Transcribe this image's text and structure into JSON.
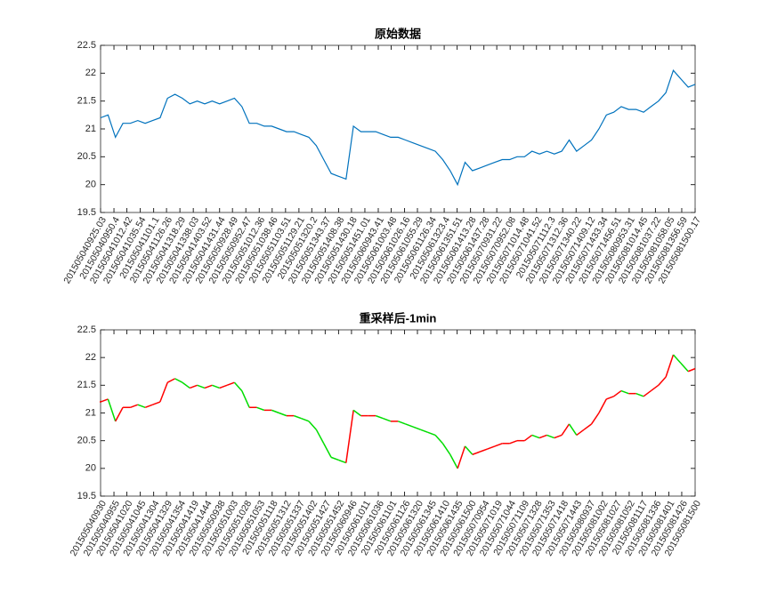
{
  "chart_data": [
    {
      "type": "line",
      "title": "原始数据",
      "color": "#0072bd",
      "x": [
        0,
        15,
        30,
        45,
        60,
        75,
        90,
        105,
        120,
        135,
        150,
        165,
        180,
        195,
        210,
        225,
        240,
        255,
        270,
        285,
        300,
        315,
        330,
        345,
        360,
        375,
        390,
        405,
        420,
        435,
        450,
        465,
        480,
        495,
        510,
        525,
        540,
        555,
        570,
        585,
        600,
        615,
        630,
        645,
        660,
        675,
        690,
        705,
        720,
        735,
        750,
        765,
        780,
        795,
        810,
        825,
        840,
        855,
        870,
        885,
        900,
        915,
        930,
        945,
        960,
        975,
        990,
        1005,
        1020,
        1035,
        1050,
        1065,
        1080,
        1095,
        1110,
        1125,
        1140,
        1155,
        1170,
        1185,
        1199
      ],
      "values": [
        21.2,
        21.25,
        20.85,
        21.1,
        21.1,
        21.15,
        21.1,
        21.15,
        21.2,
        21.55,
        21.62,
        21.55,
        21.45,
        21.5,
        21.45,
        21.5,
        21.45,
        21.5,
        21.55,
        21.4,
        21.1,
        21.1,
        21.05,
        21.05,
        21.0,
        20.95,
        20.95,
        20.9,
        20.85,
        20.7,
        20.45,
        20.2,
        20.15,
        20.1,
        21.05,
        20.95,
        20.95,
        20.95,
        20.9,
        20.85,
        20.85,
        20.8,
        20.75,
        20.7,
        20.65,
        20.6,
        20.45,
        20.25,
        20.0,
        20.4,
        20.25,
        20.3,
        20.35,
        20.4,
        20.45,
        20.45,
        20.5,
        20.5,
        20.6,
        20.55,
        20.6,
        20.55,
        20.6,
        20.8,
        20.6,
        20.7,
        20.8,
        21.0,
        21.25,
        21.3,
        21.4,
        21.35,
        21.35,
        21.3,
        21.4,
        21.5,
        21.65,
        22.05,
        21.9,
        21.75,
        21.8
      ],
      "xlim": [
        0,
        1199
      ],
      "xticks": [
        {
          "value": 0,
          "label": "201505040925.03"
        },
        {
          "value": 27,
          "label": "201505040950.4"
        },
        {
          "value": 53,
          "label": "201505041012.42"
        },
        {
          "value": 80,
          "label": "201505041035.54"
        },
        {
          "value": 107,
          "label": "201505041101.1"
        },
        {
          "value": 133,
          "label": "201505041126.26"
        },
        {
          "value": 160,
          "label": "201505041318.29"
        },
        {
          "value": 187,
          "label": "201505041338.03"
        },
        {
          "value": 213,
          "label": "201505041403.52"
        },
        {
          "value": 240,
          "label": "201505041431.44"
        },
        {
          "value": 266,
          "label": "201505050928.49"
        },
        {
          "value": 293,
          "label": "201505050952.47"
        },
        {
          "value": 320,
          "label": "201505051012.36"
        },
        {
          "value": 346,
          "label": "201505051038.46"
        },
        {
          "value": 373,
          "label": "201505051103.51"
        },
        {
          "value": 400,
          "label": "201505051129.21"
        },
        {
          "value": 426,
          "label": "201505051320.2"
        },
        {
          "value": 453,
          "label": "201505051343.37"
        },
        {
          "value": 480,
          "label": "201505051408.38"
        },
        {
          "value": 506,
          "label": "201505051430.18"
        },
        {
          "value": 533,
          "label": "201505051451.01"
        },
        {
          "value": 560,
          "label": "201505060943.41"
        },
        {
          "value": 586,
          "label": "201505061003.48"
        },
        {
          "value": 613,
          "label": "201505061026.16"
        },
        {
          "value": 639,
          "label": "201505061055.29"
        },
        {
          "value": 666,
          "label": "201505061126.34"
        },
        {
          "value": 693,
          "label": "201505061323.4"
        },
        {
          "value": 719,
          "label": "201505061351.51"
        },
        {
          "value": 746,
          "label": "201505061413.28"
        },
        {
          "value": 773,
          "label": "201505061437.28"
        },
        {
          "value": 799,
          "label": "201505070931.22"
        },
        {
          "value": 826,
          "label": "201505070952.08"
        },
        {
          "value": 853,
          "label": "201505071014.48"
        },
        {
          "value": 879,
          "label": "201505071041.52"
        },
        {
          "value": 906,
          "label": "201505071112.3"
        },
        {
          "value": 932,
          "label": "201505071312.36"
        },
        {
          "value": 959,
          "label": "201505071340.22"
        },
        {
          "value": 986,
          "label": "201505071409.12"
        },
        {
          "value": 1012,
          "label": "201505071433.34"
        },
        {
          "value": 1039,
          "label": "201505071456.51"
        },
        {
          "value": 1066,
          "label": "201505080953.31"
        },
        {
          "value": 1092,
          "label": "201505081014.45"
        },
        {
          "value": 1119,
          "label": "201505081037.22"
        },
        {
          "value": 1146,
          "label": "201505081058.05"
        },
        {
          "value": 1172,
          "label": "201505081356.59"
        },
        {
          "value": 1199,
          "label": "201505081500.17"
        }
      ],
      "ylim": [
        19.5,
        22.5
      ],
      "yticks": [
        19.5,
        20,
        20.5,
        21,
        21.5,
        22,
        22.5
      ]
    },
    {
      "type": "candle",
      "title": "重采样后-1min",
      "up_color": "#ff0000",
      "down_color": "#00dd00",
      "x": [
        0,
        15,
        30,
        45,
        60,
        75,
        90,
        105,
        120,
        135,
        150,
        165,
        180,
        195,
        210,
        225,
        240,
        255,
        270,
        285,
        300,
        315,
        330,
        345,
        360,
        375,
        390,
        405,
        420,
        435,
        450,
        465,
        480,
        495,
        510,
        525,
        540,
        555,
        570,
        585,
        600,
        615,
        630,
        645,
        660,
        675,
        690,
        705,
        720,
        735,
        750,
        765,
        780,
        795,
        810,
        825,
        840,
        855,
        870,
        885,
        900,
        915,
        930,
        945,
        960,
        975,
        990,
        1005,
        1020,
        1035,
        1050,
        1065,
        1080,
        1095,
        1110,
        1125,
        1140,
        1155,
        1170,
        1185,
        1199
      ],
      "values": [
        21.2,
        21.25,
        20.85,
        21.1,
        21.1,
        21.15,
        21.1,
        21.15,
        21.2,
        21.55,
        21.62,
        21.55,
        21.45,
        21.5,
        21.45,
        21.5,
        21.45,
        21.5,
        21.55,
        21.4,
        21.1,
        21.1,
        21.05,
        21.05,
        21.0,
        20.95,
        20.95,
        20.9,
        20.85,
        20.7,
        20.45,
        20.2,
        20.15,
        20.1,
        21.05,
        20.95,
        20.95,
        20.95,
        20.9,
        20.85,
        20.85,
        20.8,
        20.75,
        20.7,
        20.65,
        20.6,
        20.45,
        20.25,
        20.0,
        20.4,
        20.25,
        20.3,
        20.35,
        20.4,
        20.45,
        20.45,
        20.5,
        20.5,
        20.6,
        20.55,
        20.6,
        20.55,
        20.6,
        20.8,
        20.6,
        20.7,
        20.8,
        21.0,
        21.25,
        21.3,
        21.4,
        21.35,
        21.35,
        21.3,
        21.4,
        21.5,
        21.65,
        22.05,
        21.9,
        21.75,
        21.8
      ],
      "xlim": [
        0,
        1199
      ],
      "xticks": [
        {
          "value": 0,
          "label": "201505040930"
        },
        {
          "value": 27,
          "label": "201505040955"
        },
        {
          "value": 53,
          "label": "201505041020"
        },
        {
          "value": 80,
          "label": "201505041045"
        },
        {
          "value": 107,
          "label": "201505041304"
        },
        {
          "value": 133,
          "label": "201505041329"
        },
        {
          "value": 160,
          "label": "201505041354"
        },
        {
          "value": 187,
          "label": "201505041419"
        },
        {
          "value": 213,
          "label": "201505041444"
        },
        {
          "value": 240,
          "label": "201505050938"
        },
        {
          "value": 266,
          "label": "201505051003"
        },
        {
          "value": 293,
          "label": "201505051028"
        },
        {
          "value": 320,
          "label": "201505051053"
        },
        {
          "value": 346,
          "label": "201505051118"
        },
        {
          "value": 373,
          "label": "201505051312"
        },
        {
          "value": 400,
          "label": "201505051337"
        },
        {
          "value": 426,
          "label": "201505051402"
        },
        {
          "value": 453,
          "label": "201505051427"
        },
        {
          "value": 480,
          "label": "201505051452"
        },
        {
          "value": 506,
          "label": "201505060946"
        },
        {
          "value": 533,
          "label": "201505061011"
        },
        {
          "value": 560,
          "label": "201505061036"
        },
        {
          "value": 586,
          "label": "201505061101"
        },
        {
          "value": 613,
          "label": "201505061126"
        },
        {
          "value": 639,
          "label": "201505061320"
        },
        {
          "value": 666,
          "label": "201505061345"
        },
        {
          "value": 693,
          "label": "201505061410"
        },
        {
          "value": 719,
          "label": "201505061435"
        },
        {
          "value": 746,
          "label": "201505061500"
        },
        {
          "value": 773,
          "label": "201505070954"
        },
        {
          "value": 799,
          "label": "201505071019"
        },
        {
          "value": 826,
          "label": "201505071044"
        },
        {
          "value": 853,
          "label": "201505071109"
        },
        {
          "value": 879,
          "label": "201505071328"
        },
        {
          "value": 906,
          "label": "201505071353"
        },
        {
          "value": 932,
          "label": "201505071418"
        },
        {
          "value": 959,
          "label": "201505071443"
        },
        {
          "value": 986,
          "label": "201505080937"
        },
        {
          "value": 1012,
          "label": "201505081002"
        },
        {
          "value": 1039,
          "label": "201505081027"
        },
        {
          "value": 1066,
          "label": "201505081052"
        },
        {
          "value": 1092,
          "label": "201505081117"
        },
        {
          "value": 1119,
          "label": "201505081336"
        },
        {
          "value": 1146,
          "label": "201505081401"
        },
        {
          "value": 1172,
          "label": "201505081426"
        },
        {
          "value": 1199,
          "label": "201505081500"
        }
      ],
      "ylim": [
        19.5,
        22.5
      ],
      "yticks": [
        19.5,
        20,
        20.5,
        21,
        21.5,
        22,
        22.5
      ]
    }
  ]
}
